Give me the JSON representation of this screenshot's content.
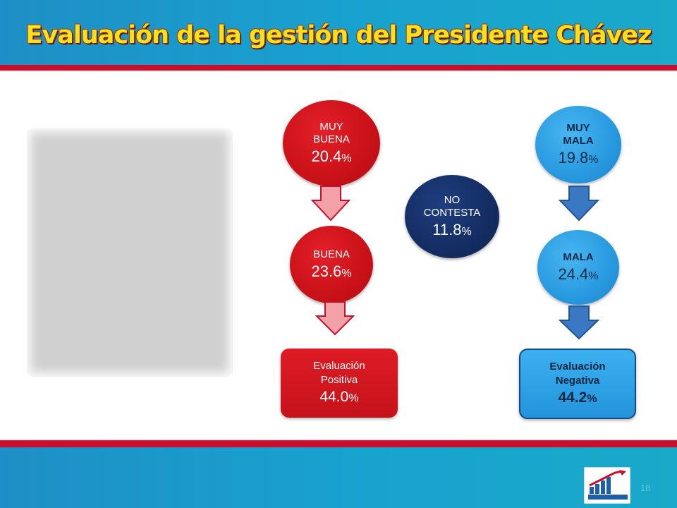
{
  "slide": {
    "title": "Evaluación de la gestión del Presidente Chávez",
    "page_number": "18"
  },
  "colors": {
    "header_blue": "#1aa3cf",
    "stripe_red": "#c8102e",
    "title_yellow": "#f7e11b",
    "positive_red": "#cc1219",
    "negative_blue": "#2899e0",
    "neutral_navy": "#142d62"
  },
  "photo": {
    "icon": "photo-placeholder"
  },
  "positive": {
    "muy_buena": {
      "label_line1": "MUY",
      "label_line2": "BUENA",
      "value": "20.4",
      "unit": "%"
    },
    "buena": {
      "label": "BUENA",
      "value": "23.6",
      "unit": "%"
    },
    "total": {
      "label_line1": "Evaluación",
      "label_line2": "Positiva",
      "value": "44.0",
      "unit": "%"
    }
  },
  "neutral": {
    "no_contesta": {
      "label_line1": "NO",
      "label_line2": "CONTESTA",
      "value": "11.8",
      "unit": "%"
    }
  },
  "negative": {
    "muy_mala": {
      "label_line1": "MUY",
      "label_line2": "MALA",
      "value": "19.8",
      "unit": "%"
    },
    "mala": {
      "label": "MALA",
      "value": "24.4",
      "unit": "%"
    },
    "total": {
      "label_line1": "Evaluación",
      "label_line2": "Negativa",
      "value": "44.2",
      "unit": "%"
    }
  },
  "icons": {
    "positive_arrows": "down-arrow-icon",
    "negative_arrows": "down-arrow-icon",
    "logo": "logo-icon"
  }
}
